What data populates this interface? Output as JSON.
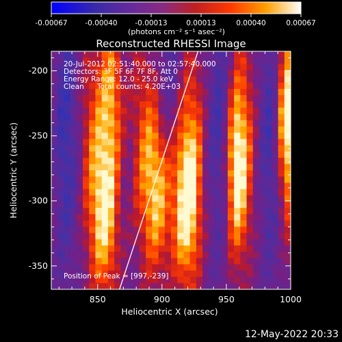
{
  "chart_data": {
    "type": "heatmap",
    "title": "Reconstructed RHESSI Image",
    "xlabel": "Heliocentric X (arcsec)",
    "ylabel": "Heliocentric Y (arcsec)",
    "xlim": [
      814,
      1000
    ],
    "ylim": [
      -368,
      -185
    ],
    "x_ticks": [
      850,
      900,
      950,
      1000
    ],
    "y_ticks": [
      -200,
      -250,
      -300,
      -350
    ],
    "colorbar": {
      "ticks": [
        "-0.00067",
        "-0.00040",
        "-0.00013",
        "0.00013",
        "0.00040",
        "0.00067"
      ],
      "unit_label": "(photons cm⁻² s⁻¹ asec⁻²)",
      "range": [
        -0.00067,
        0.00067
      ]
    },
    "annotations": {
      "time_range": "20-Jul-2012 02:51:40.000 to 02:57:40.000",
      "detectors": "Detectors: 3F 5F 6F 7F 8F, Att 0",
      "energy_range": "Energy Range: 12.0 - 25.0 keV",
      "method": "Clean",
      "total_counts": "Total counts: 4.20E+03",
      "peak_position": "Position of Peak = [997,-239]"
    },
    "limb_line": [
      [
        867,
        -368
      ],
      [
        928,
        -185
      ]
    ],
    "bright_bands": [
      {
        "x": 857,
        "y_center": -310,
        "width": 12
      },
      {
        "x": 862,
        "y_center": -218,
        "width": 10
      },
      {
        "x": 898,
        "y_center": -290,
        "width": 12
      },
      {
        "x": 918,
        "y_center": -300,
        "width": 11
      },
      {
        "x": 957,
        "y_center": -275,
        "width": 9
      },
      {
        "x": 996,
        "y_center": -239,
        "width": 8
      }
    ]
  },
  "timestamp": "12-May-2022 20:33"
}
